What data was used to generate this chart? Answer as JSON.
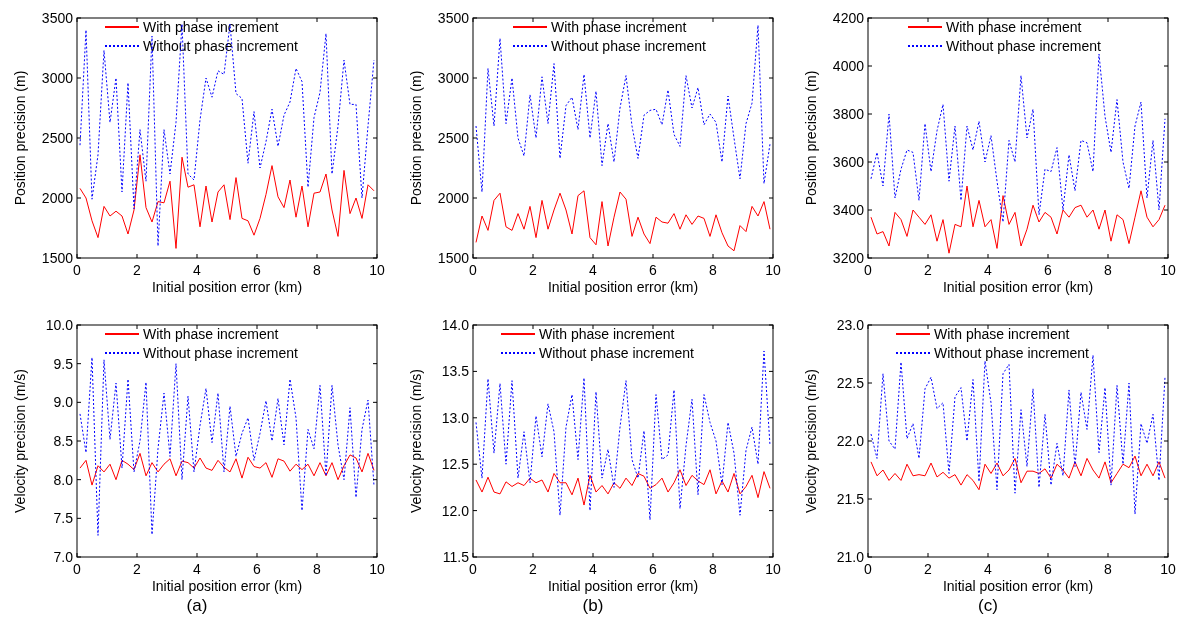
{
  "chart_data": [
    {
      "type": "line",
      "xlabel": "Initial position error (km)",
      "ylabel": "Position precision (m)",
      "xlim": [
        0,
        10
      ],
      "xticks": [
        0,
        2,
        4,
        6,
        8,
        10
      ],
      "ylim": [
        1500,
        3500
      ],
      "yticks": [
        1500,
        2000,
        2500,
        3000,
        3500
      ],
      "legend": "top left",
      "x": [
        0.1,
        0.3,
        0.5,
        0.7,
        0.9,
        1.1,
        1.3,
        1.5,
        1.7,
        1.9,
        2.1,
        2.3,
        2.5,
        2.7,
        2.9,
        3.1,
        3.3,
        3.5,
        3.7,
        3.9,
        4.1,
        4.3,
        4.5,
        4.7,
        4.9,
        5.1,
        5.3,
        5.5,
        5.7,
        5.9,
        6.1,
        6.3,
        6.5,
        6.7,
        6.9,
        7.1,
        7.3,
        7.5,
        7.7,
        7.9,
        8.1,
        8.3,
        8.5,
        8.7,
        8.9,
        9.1,
        9.3,
        9.5,
        9.7,
        9.9
      ],
      "series": [
        {
          "name": "With phase increment",
          "color": "#ff0000",
          "line_style": "solid",
          "values": [
            2080,
            2000,
            1810,
            1670,
            1930,
            1850,
            1890,
            1850,
            1700,
            1900,
            2360,
            1920,
            1800,
            1970,
            1960,
            2140,
            1580,
            2340,
            2090,
            2110,
            1760,
            2100,
            1800,
            2050,
            2110,
            1820,
            2170,
            1830,
            1810,
            1690,
            1830,
            2030,
            2270,
            2010,
            1920,
            2150,
            1840,
            2100,
            1760,
            2040,
            2050,
            2200,
            1900,
            1680,
            2230,
            1870,
            2000,
            1830,
            2110,
            2060
          ]
        },
        {
          "name": "Without phase increment",
          "color": "#0000ff",
          "line_style": "dotted",
          "values": [
            2440,
            3400,
            1990,
            2360,
            3230,
            2630,
            3000,
            2050,
            2960,
            1910,
            2570,
            2140,
            3350,
            1600,
            2570,
            2200,
            2630,
            3450,
            2200,
            2150,
            2650,
            3000,
            2840,
            3060,
            3030,
            3450,
            2870,
            2830,
            2290,
            2720,
            2250,
            2470,
            2740,
            2430,
            2690,
            2800,
            3080,
            2970,
            2090,
            2670,
            2880,
            3370,
            2200,
            2600,
            3150,
            2780,
            2780,
            2000,
            2600,
            3150
          ]
        }
      ]
    },
    {
      "type": "line",
      "xlabel": "Initial position error (km)",
      "ylabel": "Position precision (m)",
      "xlim": [
        0,
        10
      ],
      "xticks": [
        0,
        2,
        4,
        6,
        8,
        10
      ],
      "ylim": [
        1500,
        3500
      ],
      "yticks": [
        1500,
        2000,
        2500,
        3000,
        3500
      ],
      "legend": "top",
      "x": [
        0.1,
        0.3,
        0.5,
        0.7,
        0.9,
        1.1,
        1.3,
        1.5,
        1.7,
        1.9,
        2.1,
        2.3,
        2.5,
        2.7,
        2.9,
        3.1,
        3.3,
        3.5,
        3.7,
        3.9,
        4.1,
        4.3,
        4.5,
        4.7,
        4.9,
        5.1,
        5.3,
        5.5,
        5.7,
        5.9,
        6.1,
        6.3,
        6.5,
        6.7,
        6.9,
        7.1,
        7.3,
        7.5,
        7.7,
        7.9,
        8.1,
        8.3,
        8.5,
        8.7,
        8.9,
        9.1,
        9.3,
        9.5,
        9.7,
        9.9
      ],
      "series": [
        {
          "name": "With phase increment",
          "color": "#ff0000",
          "line_style": "solid",
          "values": [
            1630,
            1850,
            1730,
            1980,
            2040,
            1760,
            1730,
            1870,
            1740,
            1930,
            1670,
            1980,
            1740,
            1900,
            2040,
            1900,
            1700,
            2020,
            2060,
            1670,
            1610,
            1970,
            1600,
            1840,
            2050,
            1990,
            1680,
            1840,
            1700,
            1620,
            1840,
            1800,
            1790,
            1870,
            1740,
            1860,
            1780,
            1850,
            1830,
            1680,
            1860,
            1710,
            1600,
            1560,
            1770,
            1720,
            1930,
            1850,
            1970,
            1740
          ]
        },
        {
          "name": "Without phase increment",
          "color": "#0000ff",
          "line_style": "dotted",
          "values": [
            2600,
            2050,
            3080,
            2600,
            3330,
            2620,
            3000,
            2500,
            2350,
            2860,
            2500,
            3010,
            2620,
            3120,
            2330,
            2770,
            2840,
            2570,
            3030,
            2500,
            2890,
            2270,
            2620,
            2300,
            2750,
            3020,
            2600,
            2330,
            2690,
            2730,
            2740,
            2610,
            2900,
            2530,
            2430,
            3020,
            2750,
            2920,
            2610,
            2700,
            2630,
            2300,
            2850,
            2500,
            2160,
            2620,
            2790,
            3440,
            2120,
            2450
          ]
        }
      ]
    },
    {
      "type": "line",
      "xlabel": "Initial position error (km)",
      "ylabel": "Position precision (m)",
      "xlim": [
        0,
        10
      ],
      "xticks": [
        0,
        2,
        4,
        6,
        8,
        10
      ],
      "ylim": [
        3200,
        4200
      ],
      "yticks": [
        3200,
        3400,
        3600,
        3800,
        4000,
        4200
      ],
      "legend": "top",
      "x": [
        0.1,
        0.3,
        0.5,
        0.7,
        0.9,
        1.1,
        1.3,
        1.5,
        1.7,
        1.9,
        2.1,
        2.3,
        2.5,
        2.7,
        2.9,
        3.1,
        3.3,
        3.5,
        3.7,
        3.9,
        4.1,
        4.3,
        4.5,
        4.7,
        4.9,
        5.1,
        5.3,
        5.5,
        5.7,
        5.9,
        6.1,
        6.3,
        6.5,
        6.7,
        6.9,
        7.1,
        7.3,
        7.5,
        7.7,
        7.9,
        8.1,
        8.3,
        8.5,
        8.7,
        8.9,
        9.1,
        9.3,
        9.5,
        9.7,
        9.9
      ],
      "series": [
        {
          "name": "With phase increment",
          "color": "#ff0000",
          "line_style": "solid",
          "values": [
            3370,
            3300,
            3310,
            3250,
            3390,
            3360,
            3290,
            3400,
            3370,
            3340,
            3380,
            3270,
            3360,
            3220,
            3340,
            3330,
            3500,
            3330,
            3440,
            3330,
            3360,
            3240,
            3460,
            3340,
            3390,
            3250,
            3320,
            3420,
            3350,
            3390,
            3370,
            3300,
            3400,
            3370,
            3410,
            3420,
            3370,
            3400,
            3320,
            3400,
            3270,
            3380,
            3360,
            3260,
            3370,
            3480,
            3370,
            3330,
            3360,
            3420
          ]
        },
        {
          "name": "Without phase increment",
          "color": "#0000ff",
          "line_style": "dotted",
          "values": [
            3530,
            3640,
            3500,
            3800,
            3450,
            3570,
            3650,
            3640,
            3440,
            3760,
            3560,
            3730,
            3840,
            3520,
            3750,
            3440,
            3750,
            3650,
            3770,
            3600,
            3710,
            3520,
            3350,
            3690,
            3600,
            3960,
            3700,
            3820,
            3380,
            3570,
            3560,
            3660,
            3400,
            3630,
            3480,
            3690,
            3680,
            3560,
            4050,
            3790,
            3640,
            3860,
            3600,
            3490,
            3750,
            3850,
            3450,
            3690,
            3400,
            3780
          ]
        }
      ]
    },
    {
      "type": "line",
      "xlabel": "Initial position error (km)",
      "ylabel": "Velocity precision (m/s)",
      "xlim": [
        0,
        10
      ],
      "xticks": [
        0,
        2,
        4,
        6,
        8,
        10
      ],
      "ylim": [
        7,
        10
      ],
      "yticks": [
        {
          "value": 7,
          "label": "7.0"
        },
        7.5,
        {
          "value": 8,
          "label": "8.0"
        },
        8.5,
        {
          "value": 9,
          "label": "9.0"
        },
        9.5,
        {
          "value": 10,
          "label": "10.0"
        }
      ],
      "legend": "top left",
      "annotations": [
        "(a)"
      ],
      "x": [
        0.1,
        0.3,
        0.5,
        0.7,
        0.9,
        1.1,
        1.3,
        1.5,
        1.7,
        1.9,
        2.1,
        2.3,
        2.5,
        2.7,
        2.9,
        3.1,
        3.3,
        3.5,
        3.7,
        3.9,
        4.1,
        4.3,
        4.5,
        4.7,
        4.9,
        5.1,
        5.3,
        5.5,
        5.7,
        5.9,
        6.1,
        6.3,
        6.5,
        6.7,
        6.9,
        7.1,
        7.3,
        7.5,
        7.7,
        7.9,
        8.1,
        8.3,
        8.5,
        8.7,
        8.9,
        9.1,
        9.3,
        9.5,
        9.7,
        9.9
      ],
      "series": [
        {
          "name": "With phase increment",
          "color": "#ff0000",
          "line_style": "solid",
          "values": [
            8.15,
            8.25,
            7.93,
            8.18,
            8.1,
            8.2,
            8,
            8.25,
            8.2,
            8.13,
            8.34,
            8.05,
            8.22,
            8.1,
            8.2,
            8.27,
            8.05,
            8.24,
            8.22,
            8.15,
            8.28,
            8.15,
            8.12,
            8.25,
            8.16,
            8.1,
            8.27,
            8.02,
            8.29,
            8.17,
            8.15,
            8.22,
            8.03,
            8.27,
            8.24,
            8.11,
            8.2,
            8.13,
            8.2,
            8.05,
            8.22,
            8.05,
            8.22,
            8,
            8.18,
            8.32,
            8.28,
            8.1,
            8.34,
            8.12
          ]
        },
        {
          "name": "Without phase increment",
          "color": "#0000ff",
          "line_style": "dotted",
          "values": [
            8.85,
            8.35,
            9.58,
            7.28,
            9.55,
            8.52,
            9.25,
            8.15,
            9.3,
            8.1,
            8.5,
            9.26,
            7.29,
            8.4,
            9.12,
            8.3,
            9.5,
            8,
            9.08,
            8.1,
            8.7,
            9.18,
            8.48,
            9.12,
            8.1,
            8.95,
            8.3,
            8.6,
            8.8,
            8.25,
            8.6,
            9.02,
            8.5,
            9.05,
            8.45,
            9.3,
            8.8,
            7.6,
            8.65,
            8.4,
            9.22,
            8.05,
            9.22,
            8.45,
            8,
            8.93,
            7.77,
            8.65,
            9.03,
            7.92
          ]
        }
      ]
    },
    {
      "type": "line",
      "xlabel": "Initial position error (km)",
      "ylabel": "Velocity precision (m/s)",
      "xlim": [
        0,
        10
      ],
      "xticks": [
        0,
        2,
        4,
        6,
        8,
        10
      ],
      "ylim": [
        11.5,
        14
      ],
      "yticks": [
        11.5,
        {
          "value": 12,
          "label": "12.0"
        },
        12.5,
        {
          "value": 13,
          "label": "13.0"
        },
        13.5,
        {
          "value": 14,
          "label": "14.0"
        }
      ],
      "legend": "top left",
      "annotations": [
        "(b)"
      ],
      "x": [
        0.1,
        0.3,
        0.5,
        0.7,
        0.9,
        1.1,
        1.3,
        1.5,
        1.7,
        1.9,
        2.1,
        2.3,
        2.5,
        2.7,
        2.9,
        3.1,
        3.3,
        3.5,
        3.7,
        3.9,
        4.1,
        4.3,
        4.5,
        4.7,
        4.9,
        5.1,
        5.3,
        5.5,
        5.7,
        5.9,
        6.1,
        6.3,
        6.5,
        6.7,
        6.9,
        7.1,
        7.3,
        7.5,
        7.7,
        7.9,
        8.1,
        8.3,
        8.5,
        8.7,
        8.9,
        9.1,
        9.3,
        9.5,
        9.7,
        9.9
      ],
      "series": [
        {
          "name": "With phase increment",
          "color": "#ff0000",
          "line_style": "solid",
          "values": [
            12.33,
            12.2,
            12.36,
            12.2,
            12.18,
            12.31,
            12.26,
            12.3,
            12.27,
            12.35,
            12.3,
            12.33,
            12.2,
            12.4,
            12.3,
            12.3,
            12.17,
            12.35,
            12.06,
            12.38,
            12.2,
            12.27,
            12.18,
            12.3,
            12.24,
            12.35,
            12.27,
            12.4,
            12.37,
            12.24,
            12.28,
            12.35,
            12.2,
            12.3,
            12.44,
            12.27,
            12.38,
            12.32,
            12.28,
            12.44,
            12.18,
            12.32,
            12.2,
            12.4,
            12.18,
            12.26,
            12.38,
            12.14,
            12.42,
            12.24
          ]
        },
        {
          "name": "Without phase increment",
          "color": "#0000ff",
          "line_style": "dotted",
          "values": [
            12.95,
            12.35,
            13.42,
            12.62,
            13.37,
            12.5,
            13.4,
            12.35,
            12.85,
            12.3,
            13.02,
            12.58,
            13.15,
            12.85,
            11.95,
            12.9,
            13.25,
            12.55,
            13.43,
            12,
            13.28,
            12.35,
            12.66,
            12.25,
            12.9,
            13.4,
            12.55,
            12.35,
            12.86,
            11.9,
            13.25,
            12.55,
            12.6,
            13.3,
            12.02,
            12.7,
            13.2,
            12.17,
            13.25,
            12.95,
            12.75,
            12.28,
            12.95,
            12.62,
            11.95,
            12.65,
            12.9,
            12.5,
            13.72,
            12.7
          ]
        }
      ]
    },
    {
      "type": "line",
      "xlabel": "Initial position error (km)",
      "ylabel": "Velocity precision (m/s)",
      "xlim": [
        0,
        10
      ],
      "xticks": [
        0,
        2,
        4,
        6,
        8,
        10
      ],
      "ylim": [
        21,
        23
      ],
      "yticks": [
        {
          "value": 21,
          "label": "21.0"
        },
        21.5,
        {
          "value": 22,
          "label": "22.0"
        },
        22.5,
        {
          "value": 23,
          "label": "23.0"
        }
      ],
      "legend": "top left",
      "annotations": [
        "(c)"
      ],
      "x": [
        0.1,
        0.3,
        0.5,
        0.7,
        0.9,
        1.1,
        1.3,
        1.5,
        1.7,
        1.9,
        2.1,
        2.3,
        2.5,
        2.7,
        2.9,
        3.1,
        3.3,
        3.5,
        3.7,
        3.9,
        4.1,
        4.3,
        4.5,
        4.7,
        4.9,
        5.1,
        5.3,
        5.5,
        5.7,
        5.9,
        6.1,
        6.3,
        6.5,
        6.7,
        6.9,
        7.1,
        7.3,
        7.5,
        7.7,
        7.9,
        8.1,
        8.3,
        8.5,
        8.7,
        8.9,
        9.1,
        9.3,
        9.5,
        9.7,
        9.9
      ],
      "series": [
        {
          "name": "With phase increment",
          "color": "#ff0000",
          "line_style": "solid",
          "values": [
            21.82,
            21.7,
            21.75,
            21.66,
            21.72,
            21.66,
            21.8,
            21.7,
            21.71,
            21.7,
            21.81,
            21.69,
            21.73,
            21.68,
            21.71,
            21.62,
            21.71,
            21.66,
            21.58,
            21.8,
            21.72,
            21.81,
            21.7,
            21.75,
            21.85,
            21.64,
            21.74,
            21.74,
            21.72,
            21.76,
            21.68,
            21.8,
            21.75,
            21.68,
            21.82,
            21.7,
            21.85,
            21.75,
            21.68,
            21.82,
            21.64,
            21.72,
            21.8,
            21.77,
            21.87,
            21.7,
            21.8,
            21.7,
            21.82,
            21.68
          ]
        },
        {
          "name": "Without phase increment",
          "color": "#0000ff",
          "line_style": "dotted",
          "values": [
            22.06,
            21.85,
            22.58,
            22,
            21.93,
            22.68,
            22.02,
            22.15,
            21.85,
            22.45,
            22.55,
            22.28,
            22.33,
            21.72,
            22.38,
            22.46,
            22,
            22.53,
            21.65,
            22.69,
            22.33,
            21.58,
            22.58,
            22.66,
            21.55,
            22.27,
            21.78,
            22.45,
            21.6,
            22.23,
            21.62,
            21.98,
            21.7,
            22.44,
            21.78,
            22.42,
            22.1,
            22.74,
            21.9,
            22.46,
            21.62,
            22.48,
            21.8,
            22.5,
            21.37,
            22.15,
            21.98,
            22.23,
            21.66,
            22.55
          ]
        }
      ]
    }
  ]
}
